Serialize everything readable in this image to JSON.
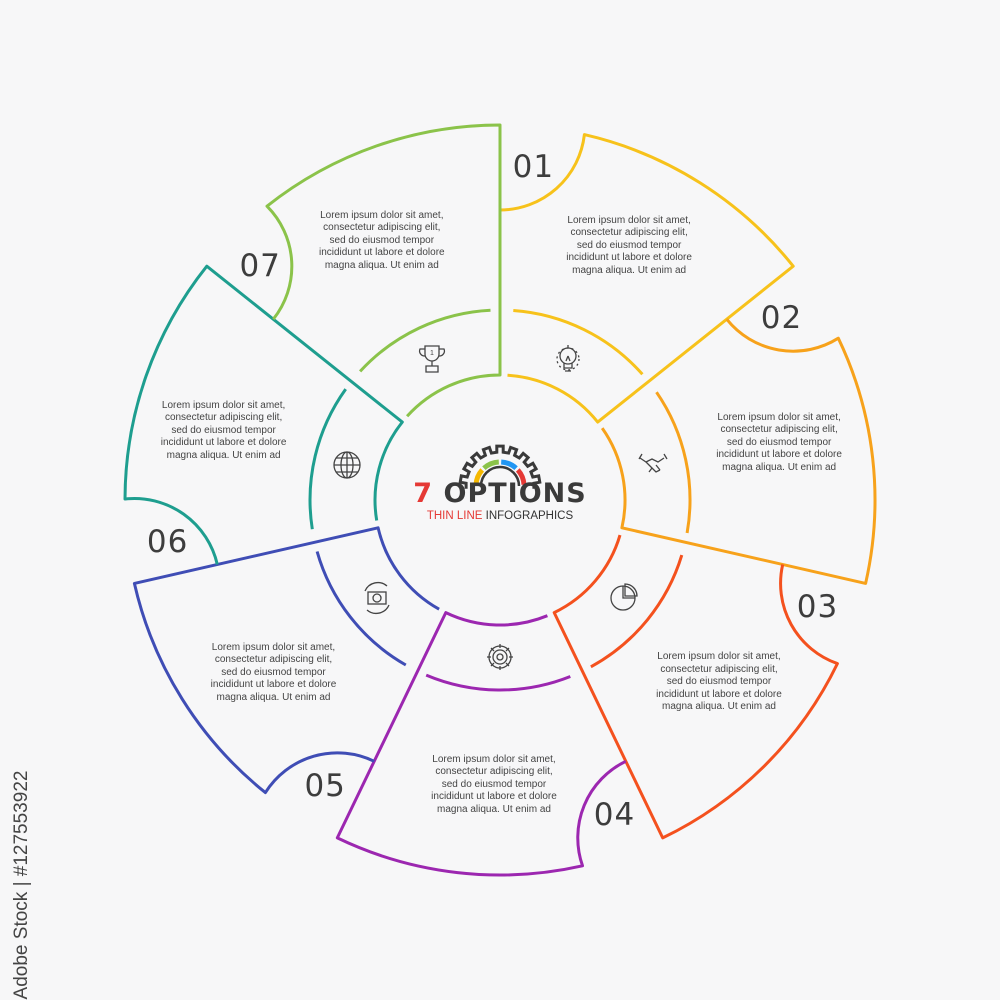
{
  "center": {
    "number": "7",
    "title_rest": "OPTIONS",
    "subtitle_red": "THIN LINE",
    "subtitle_dark": "INFOGRAPHICS",
    "gear_colors": [
      "#f5b800",
      "#8bc34a",
      "#2196f3",
      "#e53935"
    ]
  },
  "options": [
    {
      "number": "01",
      "color": "#f7c21b",
      "icon": "lightbulb-icon",
      "text": [
        "Lorem ipsum dolor sit amet,",
        "consectetur adipiscing elit,",
        "sed do eiusmod tempor",
        "incididunt ut labore et dolore",
        "magna aliqua. Ut enim ad"
      ]
    },
    {
      "number": "02",
      "color": "#f7a21b",
      "icon": "handshake-icon",
      "text": [
        "Lorem ipsum dolor sit amet,",
        "consectetur adipiscing elit,",
        "sed do eiusmod tempor",
        "incididunt ut labore et dolore",
        "magna aliqua. Ut enim ad"
      ]
    },
    {
      "number": "03",
      "color": "#f4511e",
      "icon": "pie-chart-icon",
      "text": [
        "Lorem ipsum dolor sit amet,",
        "consectetur adipiscing elit,",
        "sed do eiusmod tempor",
        "incididunt ut labore et dolore",
        "magna aliqua. Ut enim ad"
      ]
    },
    {
      "number": "04",
      "color": "#9c27b0",
      "icon": "gear-icon",
      "text": [
        "Lorem ipsum dolor sit amet,",
        "consectetur adipiscing elit,",
        "sed do eiusmod tempor",
        "incididunt ut labore et dolore",
        "magna aliqua. Ut enim ad"
      ]
    },
    {
      "number": "05",
      "color": "#3f4db5",
      "icon": "money-exchange-icon",
      "text": [
        "Lorem ipsum dolor sit amet,",
        "consectetur adipiscing elit,",
        "sed do eiusmod tempor",
        "incididunt ut labore et dolore",
        "magna aliqua. Ut enim ad"
      ]
    },
    {
      "number": "06",
      "color": "#1e9e8f",
      "icon": "globe-icon",
      "text": [
        "Lorem ipsum dolor sit amet,",
        "consectetur adipiscing elit,",
        "sed do eiusmod tempor",
        "incididunt ut labore et dolore",
        "magna aliqua. Ut enim ad"
      ]
    },
    {
      "number": "07",
      "color": "#8bc34a",
      "icon": "trophy-icon",
      "text": [
        "Lorem ipsum dolor sit amet,",
        "consectetur adipiscing elit,",
        "sed do eiusmod tempor",
        "incididunt ut labore et dolore",
        "magna aliqua. Ut enim ad"
      ]
    }
  ],
  "watermark": "Adobe Stock | #127553922"
}
